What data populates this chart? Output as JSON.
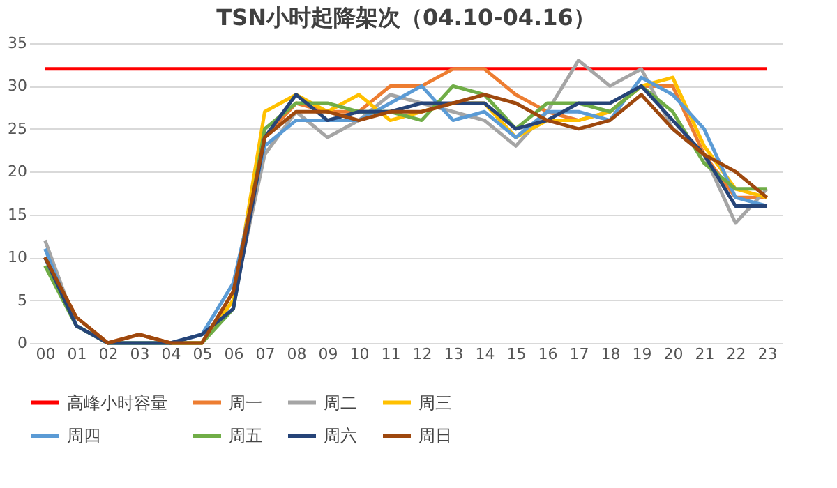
{
  "chart_data": {
    "type": "line",
    "title": "TSN小时起降架次（04.10-04.16）",
    "categories": [
      "00",
      "01",
      "02",
      "03",
      "04",
      "05",
      "06",
      "07",
      "08",
      "09",
      "10",
      "11",
      "12",
      "13",
      "14",
      "15",
      "16",
      "17",
      "18",
      "19",
      "20",
      "21",
      "22",
      "23"
    ],
    "series": [
      {
        "name": "高峰小时容量",
        "color": "#ff0000",
        "values": [
          32,
          32,
          32,
          32,
          32,
          32,
          32,
          32,
          32,
          32,
          32,
          32,
          32,
          32,
          32,
          32,
          32,
          32,
          32,
          32,
          32,
          32,
          32,
          32
        ]
      },
      {
        "name": "周一",
        "color": "#ed7d31",
        "values": [
          10,
          3,
          0,
          1,
          0,
          0,
          6,
          24,
          28,
          27,
          27,
          30,
          30,
          32,
          32,
          29,
          27,
          26,
          27,
          30,
          30,
          22,
          17,
          17
        ]
      },
      {
        "name": "周二",
        "color": "#a5a5a5",
        "values": [
          12,
          2,
          0,
          0,
          0,
          0,
          5,
          22,
          27,
          24,
          26,
          29,
          28,
          27,
          26,
          23,
          27,
          33,
          30,
          32,
          25,
          22,
          14,
          18
        ]
      },
      {
        "name": "周三",
        "color": "#ffc000",
        "values": [
          null,
          null,
          null,
          null,
          0,
          0,
          5,
          27,
          29,
          27,
          29,
          26,
          27,
          28,
          28,
          24,
          26,
          26,
          27,
          30,
          31,
          23,
          18,
          17
        ]
      },
      {
        "name": "周四",
        "color": "#5b9bd5",
        "values": [
          11,
          2,
          0,
          0,
          0,
          1,
          7,
          23,
          26,
          26,
          26,
          28,
          30,
          26,
          27,
          24,
          27,
          27,
          26,
          31,
          29,
          25,
          17,
          16
        ]
      },
      {
        "name": "周五",
        "color": "#70ad47",
        "values": [
          9,
          2,
          0,
          0,
          0,
          0,
          4,
          25,
          28,
          28,
          27,
          27,
          26,
          30,
          29,
          25,
          28,
          28,
          27,
          30,
          27,
          21,
          18,
          18
        ]
      },
      {
        "name": "周六",
        "color": "#264478",
        "values": [
          10,
          2,
          0,
          0,
          0,
          1,
          4,
          24,
          29,
          26,
          27,
          27,
          28,
          28,
          28,
          25,
          26,
          28,
          28,
          30,
          26,
          22,
          16,
          16
        ]
      },
      {
        "name": "周日",
        "color": "#9e480e",
        "values": [
          10,
          3,
          0,
          1,
          0,
          0,
          6,
          24,
          27,
          27,
          26,
          27,
          27,
          28,
          29,
          28,
          26,
          25,
          26,
          29,
          25,
          22,
          20,
          17
        ]
      }
    ],
    "ylim": [
      0,
      35
    ],
    "yticks": [
      0,
      5,
      10,
      15,
      20,
      25,
      30,
      35
    ],
    "grid": "y",
    "legend": "bottom",
    "marker": "none",
    "line_style": "solid"
  }
}
